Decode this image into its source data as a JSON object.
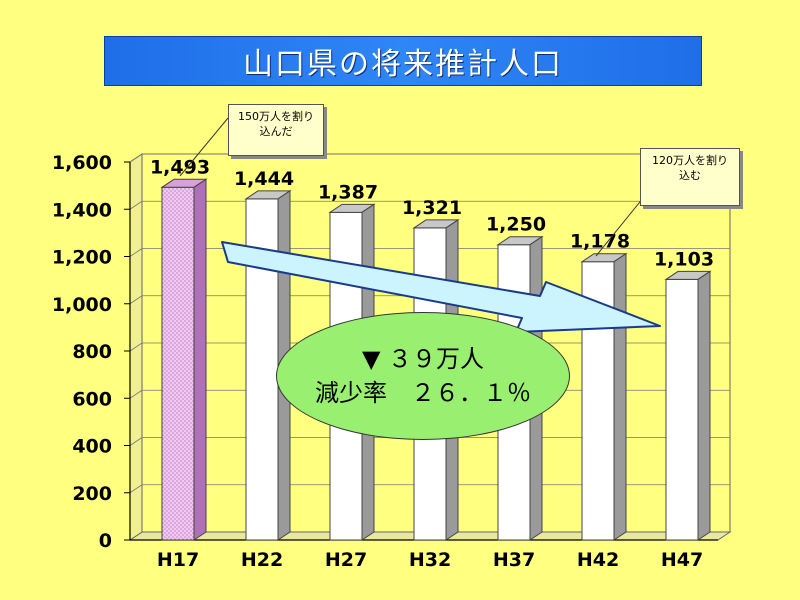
{
  "title": "山口県の将来推計人口",
  "callouts": {
    "top": [
      "150万人を割り",
      "込んだ"
    ],
    "bottom": [
      "120万人を割り",
      "込む"
    ]
  },
  "summary": {
    "line1": "▼ ３９万人",
    "line2": "減少率　２６．１％"
  },
  "colors": {
    "background": "#ffff80",
    "highlight_bar": "#e6b3e8",
    "bar": "#ffffff",
    "arrow": "#ccf4ff",
    "ellipse": "#99f070",
    "banner": "#2f86f5"
  },
  "chart_data": {
    "type": "bar",
    "categories": [
      "H17",
      "H22",
      "H27",
      "H32",
      "H37",
      "H42",
      "H47"
    ],
    "values": [
      1493,
      1444,
      1387,
      1321,
      1250,
      1178,
      1103
    ],
    "value_labels": [
      "1,493",
      "1,444",
      "1,387",
      "1,321",
      "1,250",
      "1,178",
      "1,103"
    ],
    "y_ticks": [
      0,
      200,
      400,
      600,
      800,
      1000,
      1200,
      1400,
      1600
    ],
    "y_tick_labels": [
      "0",
      "200",
      "400",
      "600",
      "800",
      "1,000",
      "1,200",
      "1,400",
      "1,600"
    ],
    "ylim": [
      0,
      1600
    ],
    "grid": true,
    "highlight_index": 0
  }
}
